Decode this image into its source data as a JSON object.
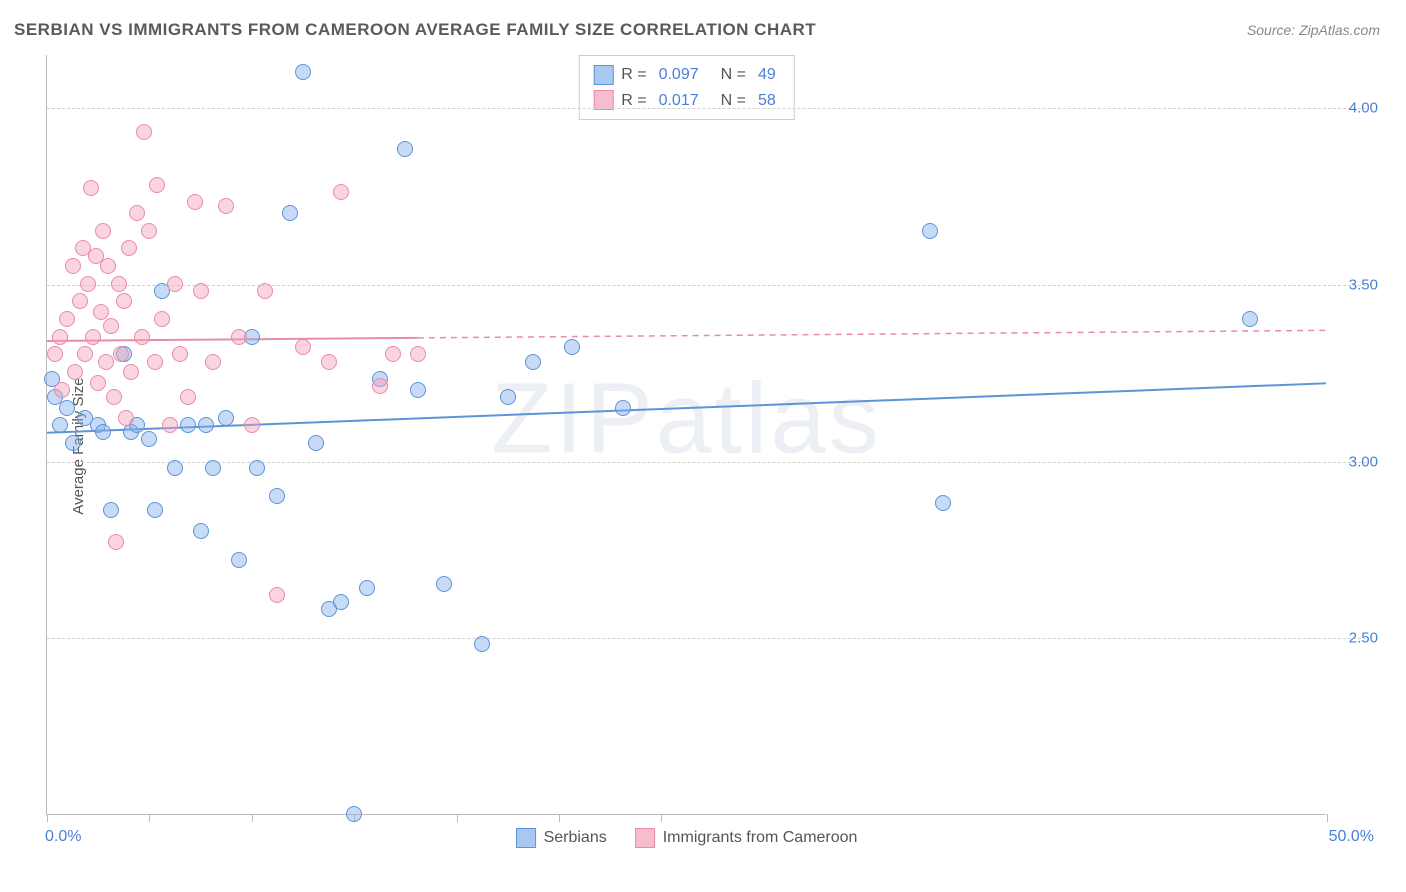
{
  "title": "SERBIAN VS IMMIGRANTS FROM CAMEROON AVERAGE FAMILY SIZE CORRELATION CHART",
  "source": "Source: ZipAtlas.com",
  "ylabel": "Average Family Size",
  "watermark": "ZIPatlas",
  "chart": {
    "type": "scatter",
    "background_color": "#ffffff",
    "grid_color": "#d0d0d0",
    "axis_color": "#bbbbbb",
    "text_color": "#555555",
    "tick_label_color": "#4a7fd8",
    "xlim": [
      0,
      50
    ],
    "ylim": [
      2.0,
      4.15
    ],
    "yticks": [
      2.5,
      3.0,
      3.5,
      4.0
    ],
    "ytick_labels": [
      "2.50",
      "3.00",
      "3.50",
      "4.00"
    ],
    "xticks_minor": [
      0,
      4,
      8,
      12,
      16,
      20,
      24,
      50
    ],
    "xlabel_min": "0.0%",
    "xlabel_max": "50.0%",
    "marker_radius": 8,
    "marker_opacity": 0.45,
    "line_width": 2
  },
  "series": [
    {
      "name": "Serbians",
      "fill_color": "#a8c8ef",
      "stroke_color": "#5d94d8",
      "R": "0.097",
      "N": "49",
      "trend": {
        "y_start": 3.08,
        "y_end": 3.22,
        "solid_until_x": 50
      },
      "points": [
        [
          0.2,
          3.23
        ],
        [
          0.3,
          3.18
        ],
        [
          0.5,
          3.1
        ],
        [
          0.8,
          3.15
        ],
        [
          1.0,
          3.05
        ],
        [
          1.5,
          3.12
        ],
        [
          2.0,
          3.1
        ],
        [
          2.2,
          3.08
        ],
        [
          2.5,
          2.86
        ],
        [
          3.0,
          3.3
        ],
        [
          3.3,
          3.08
        ],
        [
          3.5,
          3.1
        ],
        [
          4.0,
          3.06
        ],
        [
          4.2,
          2.86
        ],
        [
          4.5,
          3.48
        ],
        [
          5.0,
          2.98
        ],
        [
          5.5,
          3.1
        ],
        [
          6.0,
          2.8
        ],
        [
          6.2,
          3.1
        ],
        [
          6.5,
          2.98
        ],
        [
          7.0,
          3.12
        ],
        [
          7.5,
          2.72
        ],
        [
          8.0,
          3.35
        ],
        [
          8.2,
          2.98
        ],
        [
          9.0,
          2.9
        ],
        [
          9.5,
          3.7
        ],
        [
          10.0,
          4.1
        ],
        [
          10.5,
          3.05
        ],
        [
          11.0,
          2.58
        ],
        [
          11.5,
          2.6
        ],
        [
          12.0,
          2.0
        ],
        [
          12.5,
          2.64
        ],
        [
          13.0,
          3.23
        ],
        [
          14.0,
          3.88
        ],
        [
          14.5,
          3.2
        ],
        [
          15.5,
          2.65
        ],
        [
          17.0,
          2.48
        ],
        [
          18.0,
          3.18
        ],
        [
          19.0,
          3.28
        ],
        [
          20.5,
          3.32
        ],
        [
          22.5,
          3.15
        ],
        [
          34.5,
          3.65
        ],
        [
          35.0,
          2.88
        ],
        [
          47.0,
          3.4
        ]
      ]
    },
    {
      "name": "Immigrants from Cameroon",
      "fill_color": "#f7bcce",
      "stroke_color": "#e88ca8",
      "R": "0.017",
      "N": "58",
      "trend": {
        "y_start": 3.34,
        "y_end": 3.37,
        "solid_until_x": 14.5
      },
      "points": [
        [
          0.3,
          3.3
        ],
        [
          0.5,
          3.35
        ],
        [
          0.6,
          3.2
        ],
        [
          0.8,
          3.4
        ],
        [
          1.0,
          3.55
        ],
        [
          1.1,
          3.25
        ],
        [
          1.3,
          3.45
        ],
        [
          1.4,
          3.6
        ],
        [
          1.5,
          3.3
        ],
        [
          1.6,
          3.5
        ],
        [
          1.7,
          3.77
        ],
        [
          1.8,
          3.35
        ],
        [
          1.9,
          3.58
        ],
        [
          2.0,
          3.22
        ],
        [
          2.1,
          3.42
        ],
        [
          2.2,
          3.65
        ],
        [
          2.3,
          3.28
        ],
        [
          2.4,
          3.55
        ],
        [
          2.5,
          3.38
        ],
        [
          2.6,
          3.18
        ],
        [
          2.7,
          2.77
        ],
        [
          2.8,
          3.5
        ],
        [
          2.9,
          3.3
        ],
        [
          3.0,
          3.45
        ],
        [
          3.1,
          3.12
        ],
        [
          3.2,
          3.6
        ],
        [
          3.3,
          3.25
        ],
        [
          3.5,
          3.7
        ],
        [
          3.7,
          3.35
        ],
        [
          3.8,
          3.93
        ],
        [
          4.0,
          3.65
        ],
        [
          4.2,
          3.28
        ],
        [
          4.3,
          3.78
        ],
        [
          4.5,
          3.4
        ],
        [
          4.8,
          3.1
        ],
        [
          5.0,
          3.5
        ],
        [
          5.2,
          3.3
        ],
        [
          5.5,
          3.18
        ],
        [
          5.8,
          3.73
        ],
        [
          6.0,
          3.48
        ],
        [
          6.5,
          3.28
        ],
        [
          7.0,
          3.72
        ],
        [
          7.5,
          3.35
        ],
        [
          8.0,
          3.1
        ],
        [
          8.5,
          3.48
        ],
        [
          9.0,
          2.62
        ],
        [
          10.0,
          3.32
        ],
        [
          11.0,
          3.28
        ],
        [
          11.5,
          3.76
        ],
        [
          13.0,
          3.21
        ],
        [
          13.5,
          3.3
        ],
        [
          14.5,
          3.3
        ]
      ]
    }
  ],
  "legend_stats": {
    "R_label": "R =",
    "N_label": "N ="
  },
  "bottom_legend": [
    "Serbians",
    "Immigrants from Cameroon"
  ]
}
